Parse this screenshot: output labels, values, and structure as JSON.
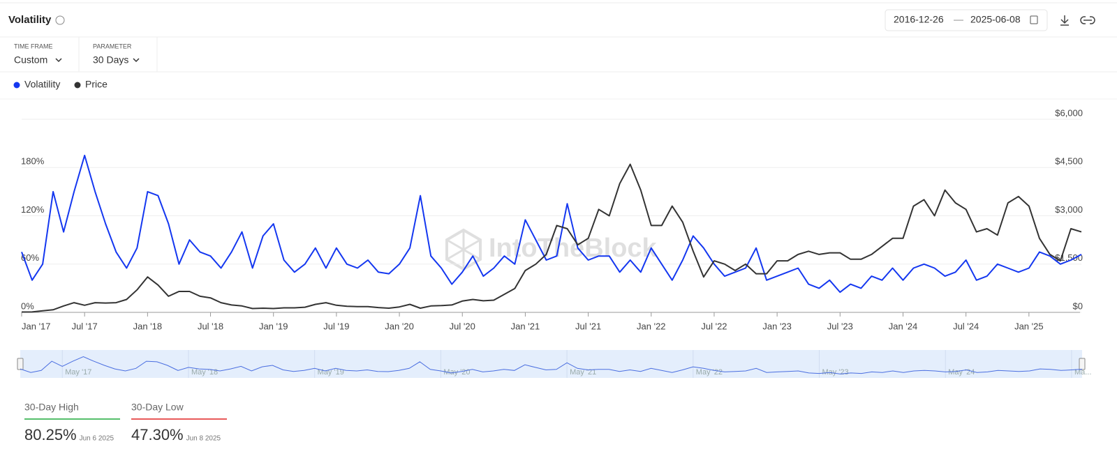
{
  "header": {
    "title": "Volatility",
    "date_from": "2016-12-26",
    "date_sep": "—",
    "date_to": "2025-06-08"
  },
  "controls": [
    {
      "label": "TIME FRAME",
      "value": "Custom"
    },
    {
      "label": "PARAMETER",
      "value": "30 Days"
    }
  ],
  "watermark": "IntoTheBlock",
  "chart_data": {
    "type": "line",
    "x": [
      "2017-01",
      "2017-02",
      "2017-03",
      "2017-04",
      "2017-05",
      "2017-06",
      "2017-07",
      "2017-08",
      "2017-09",
      "2017-10",
      "2017-11",
      "2017-12",
      "2018-01",
      "2018-02",
      "2018-03",
      "2018-04",
      "2018-05",
      "2018-06",
      "2018-07",
      "2018-08",
      "2018-09",
      "2018-10",
      "2018-11",
      "2018-12",
      "2019-01",
      "2019-02",
      "2019-03",
      "2019-04",
      "2019-05",
      "2019-06",
      "2019-07",
      "2019-08",
      "2019-09",
      "2019-10",
      "2019-11",
      "2019-12",
      "2020-01",
      "2020-02",
      "2020-03",
      "2020-04",
      "2020-05",
      "2020-06",
      "2020-07",
      "2020-08",
      "2020-09",
      "2020-10",
      "2020-11",
      "2020-12",
      "2021-01",
      "2021-02",
      "2021-03",
      "2021-04",
      "2021-05",
      "2021-06",
      "2021-07",
      "2021-08",
      "2021-09",
      "2021-10",
      "2021-11",
      "2021-12",
      "2022-01",
      "2022-02",
      "2022-03",
      "2022-04",
      "2022-05",
      "2022-06",
      "2022-07",
      "2022-08",
      "2022-09",
      "2022-10",
      "2022-11",
      "2022-12",
      "2023-01",
      "2023-02",
      "2023-03",
      "2023-04",
      "2023-05",
      "2023-06",
      "2023-07",
      "2023-08",
      "2023-09",
      "2023-10",
      "2023-11",
      "2023-12",
      "2024-01",
      "2024-02",
      "2024-03",
      "2024-04",
      "2024-05",
      "2024-06",
      "2024-07",
      "2024-08",
      "2024-09",
      "2024-10",
      "2024-11",
      "2024-12",
      "2025-01",
      "2025-02",
      "2025-03",
      "2025-04",
      "2025-05",
      "2025-06"
    ],
    "series": [
      {
        "name": "Volatility",
        "color": "#1437f0",
        "values": [
          75,
          40,
          60,
          150,
          100,
          150,
          195,
          150,
          110,
          75,
          55,
          80,
          150,
          145,
          110,
          60,
          90,
          75,
          70,
          55,
          75,
          100,
          55,
          95,
          110,
          65,
          50,
          60,
          80,
          55,
          80,
          60,
          55,
          65,
          50,
          48,
          60,
          80,
          145,
          70,
          55,
          35,
          50,
          70,
          45,
          55,
          70,
          60,
          115,
          90,
          65,
          70,
          135,
          80,
          65,
          70,
          70,
          50,
          65,
          50,
          80,
          60,
          40,
          65,
          95,
          80,
          60,
          45,
          50,
          55,
          80,
          40,
          45,
          50,
          55,
          35,
          30,
          40,
          25,
          35,
          30,
          45,
          40,
          55,
          40,
          55,
          60,
          55,
          45,
          50,
          65,
          40,
          45,
          60,
          55,
          50,
          55,
          75,
          70,
          60,
          65,
          72
        ]
      },
      {
        "name": "Price",
        "color": "#333333",
        "axis": "y2",
        "values": [
          10,
          12,
          50,
          80,
          200,
          300,
          220,
          300,
          290,
          300,
          400,
          700,
          1100,
          850,
          500,
          650,
          650,
          500,
          450,
          300,
          230,
          200,
          120,
          130,
          120,
          140,
          140,
          160,
          250,
          300,
          220,
          190,
          180,
          180,
          150,
          130,
          170,
          250,
          130,
          200,
          210,
          230,
          350,
          400,
          360,
          380,
          560,
          740,
          1300,
          1500,
          1800,
          2700,
          2600,
          2100,
          2300,
          3200,
          3000,
          4000,
          4600,
          3800,
          2700,
          2700,
          3300,
          2800,
          1900,
          1100,
          1600,
          1500,
          1300,
          1500,
          1200,
          1200,
          1600,
          1600,
          1800,
          1900,
          1800,
          1850,
          1850,
          1650,
          1650,
          1800,
          2050,
          2300,
          2300,
          3300,
          3500,
          3000,
          3800,
          3400,
          3200,
          2500,
          2600,
          2400,
          3400,
          3600,
          3300,
          2300,
          1800,
          1600,
          2600,
          2500
        ]
      }
    ],
    "xlim": [
      "2017-01",
      "2025-06"
    ],
    "xticks": [
      {
        "value": "2017-01",
        "label": "Jan '17"
      },
      {
        "value": "2017-07",
        "label": "Jul '17"
      },
      {
        "value": "2018-01",
        "label": "Jan '18"
      },
      {
        "value": "2018-07",
        "label": "Jul '18"
      },
      {
        "value": "2019-01",
        "label": "Jan '19"
      },
      {
        "value": "2019-07",
        "label": "Jul '19"
      },
      {
        "value": "2020-01",
        "label": "Jan '20"
      },
      {
        "value": "2020-07",
        "label": "Jul '20"
      },
      {
        "value": "2021-01",
        "label": "Jan '21"
      },
      {
        "value": "2021-07",
        "label": "Jul '21"
      },
      {
        "value": "2022-01",
        "label": "Jan '22"
      },
      {
        "value": "2022-07",
        "label": "Jul '22"
      },
      {
        "value": "2023-01",
        "label": "Jan '23"
      },
      {
        "value": "2023-07",
        "label": "Jul '23"
      },
      {
        "value": "2024-01",
        "label": "Jan '24"
      },
      {
        "value": "2024-07",
        "label": "Jul '24"
      },
      {
        "value": "2025-01",
        "label": "Jan '25"
      }
    ],
    "ylim": [
      0,
      240
    ],
    "yticks": [
      {
        "value": 0,
        "label": "0%"
      },
      {
        "value": 60,
        "label": "60%"
      },
      {
        "value": 120,
        "label": "120%"
      },
      {
        "value": 180,
        "label": "180%"
      }
    ],
    "y2lim": [
      0,
      6000
    ],
    "y2ticks": [
      {
        "value": 0,
        "label": "$0"
      },
      {
        "value": 1500,
        "label": "$1,500"
      },
      {
        "value": 3000,
        "label": "$3,000"
      },
      {
        "value": 4500,
        "label": "$4,500"
      },
      {
        "value": 6000,
        "label": "$6,000"
      }
    ],
    "grid": true
  },
  "navigator": {
    "labels": [
      "May '17",
      "May '18",
      "May '19",
      "May '20",
      "May '21",
      "May '22",
      "May '23",
      "May '24",
      "Ma..."
    ]
  },
  "stats": [
    {
      "label": "30-Day High",
      "value": "80.25%",
      "date": "Jun 6 2025",
      "color": "#1faa3a"
    },
    {
      "label": "30-Day Low",
      "value": "47.30%",
      "date": "Jun 8 2025",
      "color": "#e02424"
    }
  ]
}
